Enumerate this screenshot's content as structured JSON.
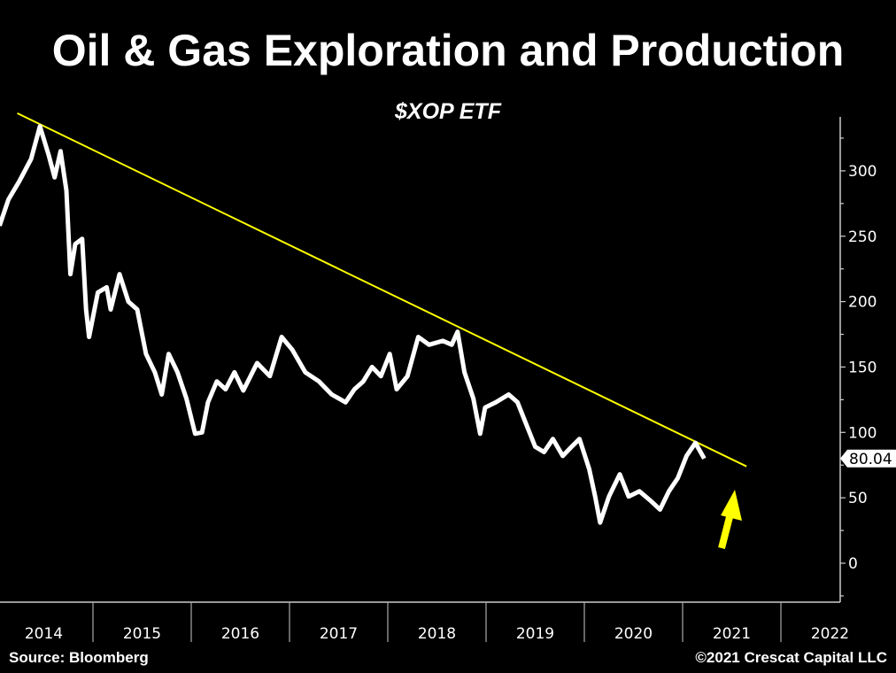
{
  "chart_data": {
    "type": "line",
    "title": "Oil & Gas Exploration and Production",
    "subtitle": "$XOP ETF",
    "xlabel": "",
    "ylabel": "",
    "xlim": [
      2014,
      2022.6
    ],
    "ylim": [
      -30,
      340
    ],
    "x_tick_labels": [
      "2014",
      "2015",
      "2016",
      "2017",
      "2018",
      "2019",
      "2020",
      "2021",
      "2022"
    ],
    "y_ticks": [
      0,
      50,
      100,
      150,
      200,
      250,
      300
    ],
    "grid": false,
    "y_axis_side": "right",
    "last_value_label": "80.04",
    "series": [
      {
        "color": "#ffffff",
        "x": [
          2014.05,
          2014.14,
          2014.25,
          2014.37,
          2014.46,
          2014.55,
          2014.61,
          2014.67,
          2014.73,
          2014.77,
          2014.82,
          2014.89,
          2014.93,
          2014.96,
          2015.05,
          2015.14,
          2015.18,
          2015.27,
          2015.36,
          2015.45,
          2015.54,
          2015.63,
          2015.7,
          2015.77,
          2015.86,
          2015.95,
          2016.04,
          2016.11,
          2016.17,
          2016.26,
          2016.35,
          2016.44,
          2016.53,
          2016.67,
          2016.8,
          2016.92,
          2017.03,
          2017.16,
          2017.3,
          2017.43,
          2017.57,
          2017.66,
          2017.75,
          2017.84,
          2017.93,
          2018.02,
          2018.09,
          2018.2,
          2018.31,
          2018.42,
          2018.56,
          2018.65,
          2018.71,
          2018.78,
          2018.87,
          2018.94,
          2018.99,
          2019.1,
          2019.23,
          2019.32,
          2019.41,
          2019.5,
          2019.59,
          2019.68,
          2019.78,
          2019.87,
          2019.95,
          2020.05,
          2020.11,
          2020.16,
          2020.25,
          2020.36,
          2020.45,
          2020.56,
          2020.67,
          2020.77,
          2020.86,
          2020.95,
          2021.04,
          2021.13,
          2021.22
        ],
        "y": [
          258,
          278,
          292,
          309,
          334,
          312,
          295,
          315,
          285,
          221,
          244,
          248,
          194,
          173,
          207,
          211,
          194,
          221,
          200,
          194,
          160,
          146,
          129,
          160,
          146,
          126,
          99,
          100,
          123,
          139,
          133,
          146,
          132,
          153,
          143,
          173,
          163,
          146,
          139,
          129,
          123,
          133,
          139,
          150,
          143,
          160,
          133,
          143,
          173,
          167,
          170,
          167,
          177,
          146,
          126,
          99,
          119,
          123,
          129,
          123,
          106,
          89,
          85,
          95,
          82,
          89,
          95,
          72,
          51,
          31,
          51,
          68,
          51,
          55,
          48,
          41,
          55,
          65,
          82,
          92,
          80
        ]
      }
    ],
    "trendline": {
      "color": "#ffff00",
      "x": [
        2014.23,
        2021.65
      ],
      "y": [
        344,
        74
      ]
    },
    "annotations": [
      {
        "type": "arrow",
        "color": "#ffff00",
        "direction": "up"
      }
    ]
  },
  "footer": {
    "source": "Source: Bloomberg",
    "copyright": "©2021 Crescat Capital LLC"
  }
}
